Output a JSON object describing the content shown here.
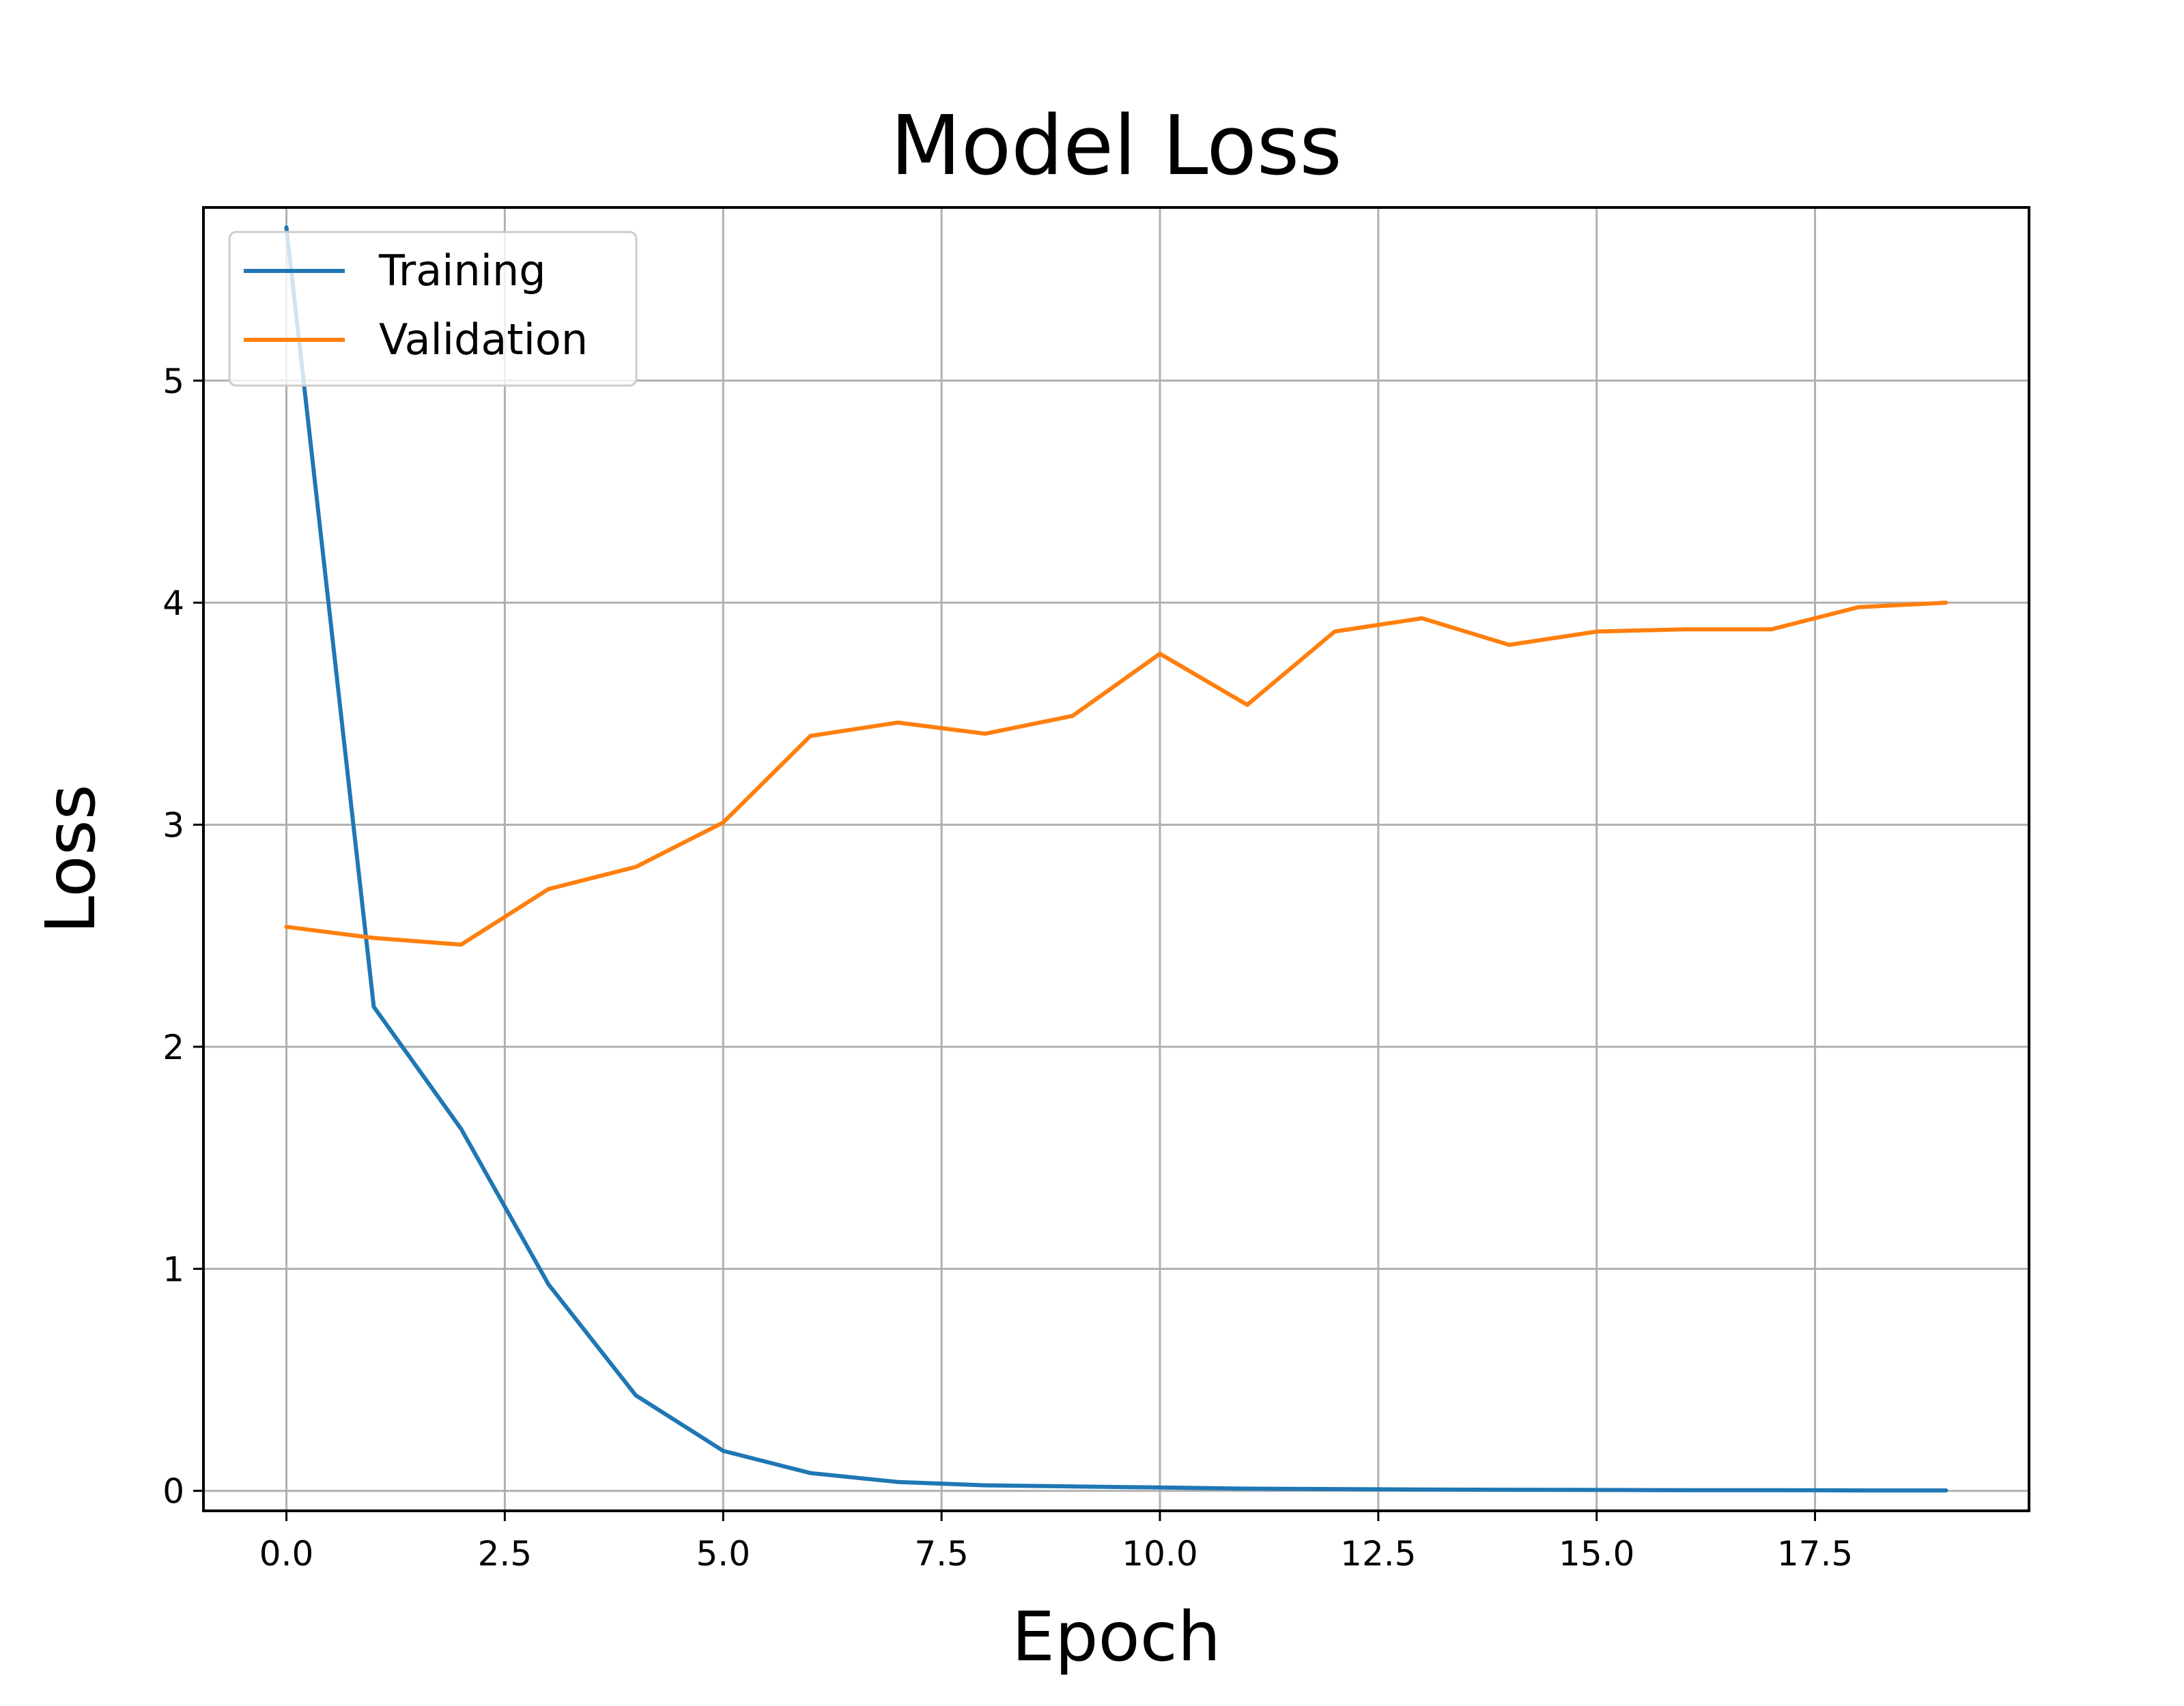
{
  "chart_data": {
    "type": "line",
    "title": "Model Loss",
    "xlabel": "Epoch",
    "ylabel": "Loss",
    "x": [
      0,
      1,
      2,
      3,
      4,
      5,
      6,
      7,
      8,
      9,
      10,
      11,
      12,
      13,
      14,
      15,
      16,
      17,
      18,
      19
    ],
    "series": [
      {
        "name": "Training",
        "color": "#1f77b4",
        "values": [
          5.69,
          2.18,
          1.63,
          0.93,
          0.43,
          0.18,
          0.08,
          0.04,
          0.025,
          0.02,
          0.015,
          0.01,
          0.008,
          0.006,
          0.005,
          0.004,
          0.003,
          0.003,
          0.002,
          0.002
        ]
      },
      {
        "name": "Validation",
        "color": "#ff7f0e",
        "values": [
          2.54,
          2.49,
          2.46,
          2.71,
          2.81,
          3.01,
          3.4,
          3.46,
          3.41,
          3.49,
          3.77,
          3.54,
          3.87,
          3.93,
          3.81,
          3.87,
          3.88,
          3.88,
          3.98,
          4.0
        ]
      }
    ],
    "xlim": [
      -0.95,
      19.95
    ],
    "ylim": [
      -0.09,
      5.78
    ],
    "xticks": [
      0.0,
      2.5,
      5.0,
      7.5,
      10.0,
      12.5,
      15.0,
      17.5
    ],
    "xtick_labels": [
      "0.0",
      "2.5",
      "5.0",
      "7.5",
      "10.0",
      "12.5",
      "15.0",
      "17.5"
    ],
    "yticks": [
      0,
      1,
      2,
      3,
      4,
      5
    ],
    "ytick_labels": [
      "0",
      "1",
      "2",
      "3",
      "4",
      "5"
    ],
    "grid": true,
    "legend_position": "upper-left"
  }
}
